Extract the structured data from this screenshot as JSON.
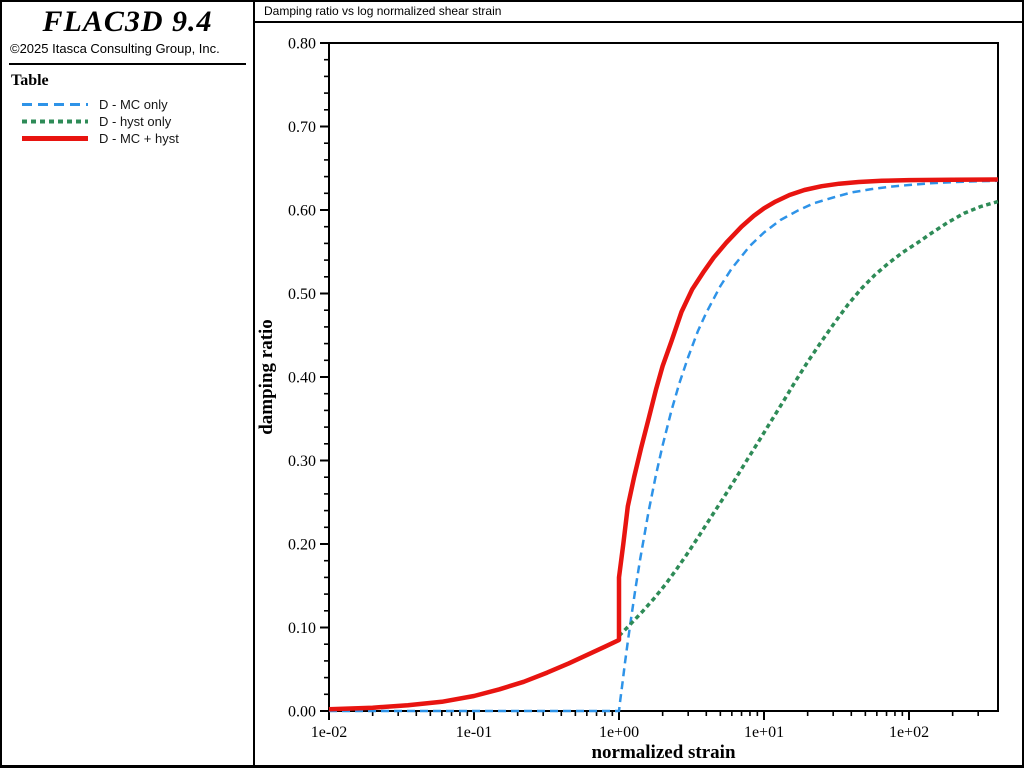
{
  "sidebar": {
    "logo": "FLAC3D 9.4",
    "copyright": "©2025 Itasca Consulting Group, Inc.",
    "legend_title": "Table",
    "legend": [
      {
        "label": "D - MC only",
        "color": "#2e93e8",
        "dash": "10,6",
        "width": 3
      },
      {
        "label": "D - hyst only",
        "color": "#2e8b57",
        "dash": "5,4",
        "width": 4
      },
      {
        "label": "D - MC + hyst",
        "color": "#e81410",
        "dash": "",
        "width": 5
      }
    ]
  },
  "header": {
    "title": "Damping ratio vs log normalized shear strain"
  },
  "chart_data": {
    "type": "line",
    "title": "Damping ratio vs log normalized shear strain",
    "xlabel": "normalized strain",
    "ylabel": "damping ratio",
    "x_scale": "log",
    "xlim": [
      0.01,
      420
    ],
    "ylim": [
      0.0,
      0.8
    ],
    "grid": false,
    "legend_position": "sidebar-left",
    "x_ticks": [
      {
        "value": 0.01,
        "label": "1e-02"
      },
      {
        "value": 0.1,
        "label": "1e-01"
      },
      {
        "value": 1.0,
        "label": "1e+00"
      },
      {
        "value": 10.0,
        "label": "1e+01"
      },
      {
        "value": 100.0,
        "label": "1e+02"
      }
    ],
    "x_minor_decades": [
      -2,
      -1,
      0,
      1,
      2
    ],
    "x_minor_max": 320,
    "y_ticks": [
      {
        "value": 0.0,
        "label": "0.00"
      },
      {
        "value": 0.1,
        "label": "0.10"
      },
      {
        "value": 0.2,
        "label": "0.20"
      },
      {
        "value": 0.3,
        "label": "0.30"
      },
      {
        "value": 0.4,
        "label": "0.40"
      },
      {
        "value": 0.5,
        "label": "0.50"
      },
      {
        "value": 0.6,
        "label": "0.60"
      },
      {
        "value": 0.7,
        "label": "0.70"
      },
      {
        "value": 0.8,
        "label": "0.80"
      }
    ],
    "y_minor_step": 0.02,
    "series": [
      {
        "name": "D - MC only",
        "color": "#2e93e8",
        "dash": "8,5",
        "width": 2.5,
        "points": [
          [
            0.01,
            0.0
          ],
          [
            0.5,
            0.0
          ],
          [
            1.0,
            0.0
          ],
          [
            1.02,
            0.0125
          ],
          [
            1.05,
            0.03
          ],
          [
            1.1,
            0.058
          ],
          [
            1.15,
            0.083
          ],
          [
            1.2,
            0.106
          ],
          [
            1.3,
            0.147
          ],
          [
            1.4,
            0.182
          ],
          [
            1.6,
            0.239
          ],
          [
            1.8,
            0.283
          ],
          [
            2.0,
            0.318
          ],
          [
            2.3,
            0.36
          ],
          [
            2.6,
            0.392
          ],
          [
            3.0,
            0.424
          ],
          [
            3.5,
            0.455
          ],
          [
            4.0,
            0.477
          ],
          [
            5.0,
            0.509
          ],
          [
            6.0,
            0.53
          ],
          [
            8.0,
            0.557
          ],
          [
            10,
            0.573
          ],
          [
            13,
            0.588
          ],
          [
            17,
            0.599
          ],
          [
            22,
            0.608
          ],
          [
            30,
            0.615
          ],
          [
            40,
            0.621
          ],
          [
            55,
            0.625
          ],
          [
            75,
            0.628
          ],
          [
            100,
            0.63
          ],
          [
            140,
            0.632
          ],
          [
            200,
            0.6334
          ],
          [
            300,
            0.6345
          ],
          [
            410,
            0.635
          ]
        ]
      },
      {
        "name": "D - hyst only",
        "color": "#2e8b57",
        "dash": "4.5,3.5",
        "width": 3.5,
        "points": [
          [
            1.0,
            0.09
          ],
          [
            1.2,
            0.104
          ],
          [
            1.45,
            0.119
          ],
          [
            1.75,
            0.135
          ],
          [
            2.1,
            0.152
          ],
          [
            2.5,
            0.17
          ],
          [
            3.0,
            0.19
          ],
          [
            3.6,
            0.211
          ],
          [
            4.3,
            0.232
          ],
          [
            5.2,
            0.254
          ],
          [
            6.3,
            0.277
          ],
          [
            7.6,
            0.3
          ],
          [
            9.2,
            0.323
          ],
          [
            11,
            0.345
          ],
          [
            13.5,
            0.37
          ],
          [
            16.5,
            0.395
          ],
          [
            20,
            0.418
          ],
          [
            25,
            0.443
          ],
          [
            31,
            0.466
          ],
          [
            38,
            0.487
          ],
          [
            47,
            0.506
          ],
          [
            58,
            0.522
          ],
          [
            72,
            0.536
          ],
          [
            90,
            0.549
          ],
          [
            115,
            0.561
          ],
          [
            145,
            0.573
          ],
          [
            185,
            0.585
          ],
          [
            240,
            0.596
          ],
          [
            310,
            0.604
          ],
          [
            410,
            0.61
          ]
        ]
      },
      {
        "name": "D - MC + hyst",
        "color": "#e81410",
        "dash": "",
        "width": 4.5,
        "points": [
          [
            0.01,
            0.002
          ],
          [
            0.02,
            0.004
          ],
          [
            0.035,
            0.007
          ],
          [
            0.06,
            0.011
          ],
          [
            0.1,
            0.018
          ],
          [
            0.15,
            0.026
          ],
          [
            0.22,
            0.035
          ],
          [
            0.32,
            0.046
          ],
          [
            0.45,
            0.057
          ],
          [
            0.6,
            0.067
          ],
          [
            0.8,
            0.077
          ],
          [
            1.0,
            0.085
          ],
          [
            1.0,
            0.16
          ],
          [
            1.07,
            0.2
          ],
          [
            1.15,
            0.245
          ],
          [
            1.27,
            0.28
          ],
          [
            1.42,
            0.315
          ],
          [
            1.6,
            0.35
          ],
          [
            1.8,
            0.385
          ],
          [
            2.0,
            0.413
          ],
          [
            2.3,
            0.443
          ],
          [
            2.7,
            0.478
          ],
          [
            3.2,
            0.505
          ],
          [
            3.8,
            0.525
          ],
          [
            4.5,
            0.543
          ],
          [
            5.5,
            0.561
          ],
          [
            7.0,
            0.58
          ],
          [
            8.5,
            0.593
          ],
          [
            10,
            0.602
          ],
          [
            12,
            0.61
          ],
          [
            15,
            0.618
          ],
          [
            19,
            0.624
          ],
          [
            25,
            0.6285
          ],
          [
            33,
            0.6315
          ],
          [
            45,
            0.6335
          ],
          [
            65,
            0.635
          ],
          [
            100,
            0.6358
          ],
          [
            200,
            0.6362
          ],
          [
            410,
            0.6365
          ]
        ]
      }
    ]
  }
}
